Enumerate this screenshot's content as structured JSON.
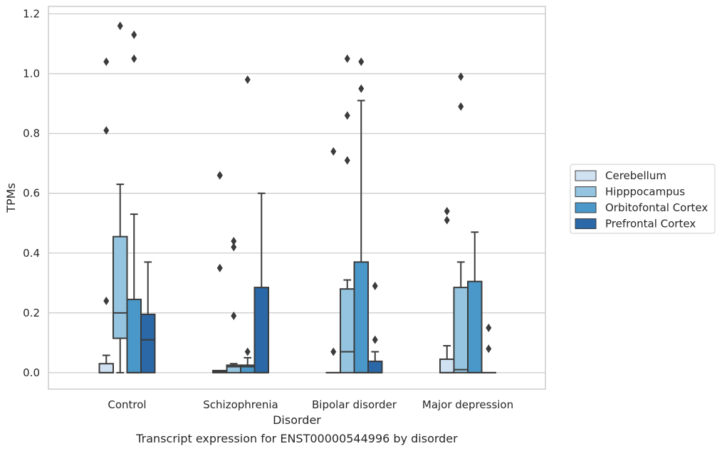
{
  "chart_data": {
    "type": "box",
    "title": "",
    "caption": "Transcript expression for ENST00000544996 by disorder",
    "xlabel": "Disorder",
    "ylabel": "TPMs",
    "ylim": [
      -0.055,
      1.225
    ],
    "yticks": [
      "0.0",
      "0.2",
      "0.4",
      "0.6",
      "0.8",
      "1.0",
      "1.2"
    ],
    "ytick_values": [
      0.0,
      0.2,
      0.4,
      0.6,
      0.8,
      1.0,
      1.2
    ],
    "grid": true,
    "legend_position": "right",
    "categories": [
      "Control",
      "Schizophrenia",
      "Bipolar disorder",
      "Major depression"
    ],
    "series": [
      {
        "name": "Cerebellum",
        "color": "#d0e1f2",
        "boxes": [
          {
            "q1": 0.0,
            "median": 0.0,
            "q3": 0.03,
            "whisker_low": 0.0,
            "whisker_high": 0.058,
            "outliers": [
              0.24,
              0.81,
              1.04
            ]
          },
          {
            "q1": 0.0,
            "median": 0.003,
            "q3": 0.007,
            "whisker_low": 0.0,
            "whisker_high": 0.007,
            "outliers": [
              0.35,
              0.66,
              0.66
            ]
          },
          {
            "q1": 0.0,
            "median": 0.0,
            "q3": 0.0,
            "whisker_low": 0.0,
            "whisker_high": 0.0,
            "outliers": [
              0.07,
              0.74
            ]
          },
          {
            "q1": 0.0,
            "median": 0.0,
            "q3": 0.045,
            "whisker_low": 0.0,
            "whisker_high": 0.09,
            "outliers": [
              0.51,
              0.54
            ]
          }
        ]
      },
      {
        "name": "Hipppocampus",
        "color": "#94c4df",
        "boxes": [
          {
            "q1": 0.115,
            "median": 0.2,
            "q3": 0.455,
            "whisker_low": 0.0,
            "whisker_high": 0.63,
            "outliers": [
              1.16
            ]
          },
          {
            "q1": 0.0,
            "median": 0.02,
            "q3": 0.025,
            "whisker_low": 0.0,
            "whisker_high": 0.03,
            "outliers": [
              0.19,
              0.42,
              0.44
            ]
          },
          {
            "q1": 0.0,
            "median": 0.07,
            "q3": 0.28,
            "whisker_low": 0.0,
            "whisker_high": 0.31,
            "outliers": [
              0.71,
              0.86,
              1.05
            ]
          },
          {
            "q1": 0.0,
            "median": 0.01,
            "q3": 0.285,
            "whisker_low": 0.0,
            "whisker_high": 0.37,
            "outliers": [
              0.89,
              0.99
            ]
          }
        ]
      },
      {
        "name": "Orbitofontal Cortex",
        "color": "#4a98c9",
        "boxes": [
          {
            "q1": 0.0,
            "median": 0.0,
            "q3": 0.245,
            "whisker_low": 0.0,
            "whisker_high": 0.53,
            "outliers": [
              1.05,
              1.13
            ]
          },
          {
            "q1": 0.0,
            "median": 0.02,
            "q3": 0.025,
            "whisker_low": 0.0,
            "whisker_high": 0.05,
            "outliers": [
              0.07,
              0.98
            ]
          },
          {
            "q1": 0.0,
            "median": 0.0,
            "q3": 0.37,
            "whisker_low": 0.0,
            "whisker_high": 0.91,
            "outliers": [
              0.95,
              1.04
            ]
          },
          {
            "q1": 0.0,
            "median": 0.0,
            "q3": 0.305,
            "whisker_low": 0.0,
            "whisker_high": 0.47,
            "outliers": []
          }
        ]
      },
      {
        "name": "Prefrontal Cortex",
        "color": "#2a68a8",
        "boxes": [
          {
            "q1": 0.0,
            "median": 0.11,
            "q3": 0.195,
            "whisker_low": 0.0,
            "whisker_high": 0.37,
            "outliers": []
          },
          {
            "q1": 0.0,
            "median": 0.0,
            "q3": 0.285,
            "whisker_low": 0.0,
            "whisker_high": 0.6,
            "outliers": []
          },
          {
            "q1": 0.0,
            "median": 0.0,
            "q3": 0.038,
            "whisker_low": 0.0,
            "whisker_high": 0.07,
            "outliers": [
              0.11,
              0.29
            ]
          },
          {
            "q1": 0.0,
            "median": 0.0,
            "q3": 0.0,
            "whisker_low": 0.0,
            "whisker_high": 0.0,
            "outliers": [
              0.08,
              0.15
            ]
          }
        ]
      }
    ]
  }
}
